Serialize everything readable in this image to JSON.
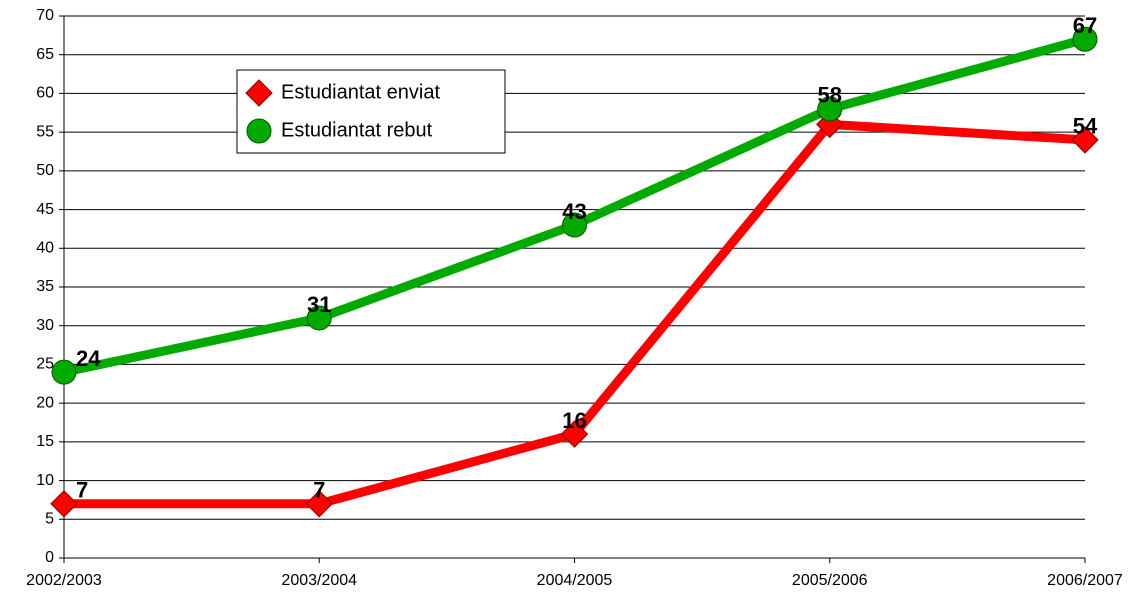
{
  "chart_data": {
    "type": "line",
    "categories": [
      "2002/2003",
      "2003/2004",
      "2004/2005",
      "2005/2006",
      "2006/2007"
    ],
    "series": [
      {
        "name": "Estudiantat enviat",
        "color": "#ff0000",
        "marker": "diamond",
        "values": [
          7,
          7,
          16,
          56,
          54
        ]
      },
      {
        "name": "Estudiantat rebut",
        "color": "#00aa00",
        "marker": "circle",
        "values": [
          24,
          31,
          43,
          58,
          67
        ]
      }
    ],
    "ylim": [
      0,
      70
    ],
    "yticks": [
      0,
      5,
      10,
      15,
      20,
      25,
      30,
      35,
      40,
      45,
      50,
      55,
      60,
      65,
      70
    ],
    "grid": true,
    "legend": "upper left",
    "data_labels": true
  }
}
